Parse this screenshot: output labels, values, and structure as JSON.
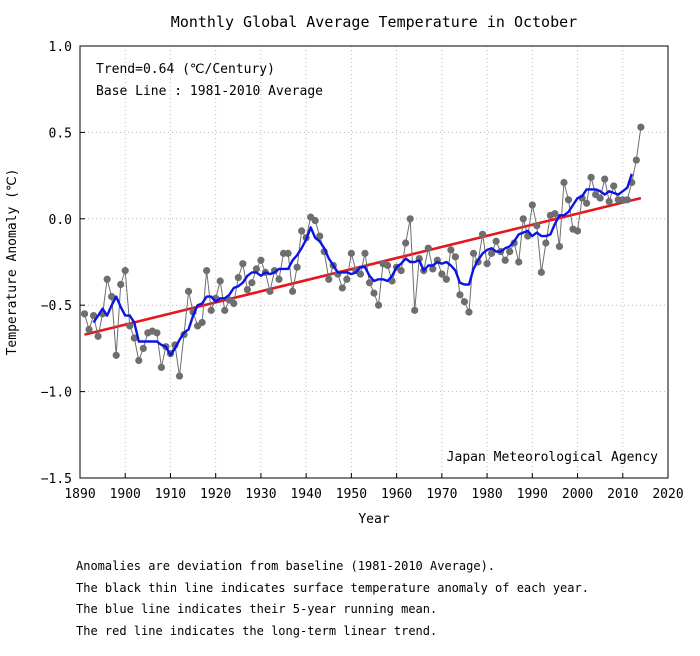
{
  "chart_data": {
    "type": "line",
    "title": "Monthly Global Average Temperature in October",
    "xlabel": "Year",
    "ylabel": "Temperature Anomaly (℃)",
    "xlim": [
      1890,
      2020
    ],
    "ylim": [
      -1.5,
      1.0
    ],
    "xticks": [
      1890,
      1900,
      1910,
      1920,
      1930,
      1940,
      1950,
      1960,
      1970,
      1980,
      1990,
      2000,
      2010,
      2020
    ],
    "xtick_labels": [
      "1890",
      "1900",
      "1910",
      "1920",
      "1930",
      "1940",
      "1950",
      "1960",
      "1970",
      "1980",
      "1990",
      "2000",
      "2010",
      "2020"
    ],
    "yticks": [
      1.0,
      0.5,
      0.0,
      -0.5,
      -1.0,
      -1.5
    ],
    "ytick_labels": [
      "1.0",
      "0.5",
      "0.0",
      "−0.5",
      "−1.0",
      "−1.5"
    ],
    "grid": true,
    "annotations": [
      "Trend=0.64 (℃/Century)",
      "Base Line : 1981-2010 Average",
      "Japan Meteorological Agency"
    ],
    "colors": {
      "annual": "#6e6e6e",
      "running_mean": "#0a14e6",
      "trend": "#e8141e",
      "grid": "#bbbbbb"
    },
    "series": [
      {
        "name": "annual anomaly",
        "x": [
          1891,
          1892,
          1893,
          1894,
          1895,
          1896,
          1897,
          1898,
          1899,
          1900,
          1901,
          1902,
          1903,
          1904,
          1905,
          1906,
          1907,
          1908,
          1909,
          1910,
          1911,
          1912,
          1913,
          1914,
          1915,
          1916,
          1917,
          1918,
          1919,
          1920,
          1921,
          1922,
          1923,
          1924,
          1925,
          1926,
          1927,
          1928,
          1929,
          1930,
          1931,
          1932,
          1933,
          1934,
          1935,
          1936,
          1937,
          1938,
          1939,
          1940,
          1941,
          1942,
          1943,
          1944,
          1945,
          1946,
          1947,
          1948,
          1949,
          1950,
          1951,
          1952,
          1953,
          1954,
          1955,
          1956,
          1957,
          1958,
          1959,
          1960,
          1961,
          1962,
          1963,
          1964,
          1965,
          1966,
          1967,
          1968,
          1969,
          1970,
          1971,
          1972,
          1973,
          1974,
          1975,
          1976,
          1977,
          1978,
          1979,
          1980,
          1981,
          1982,
          1983,
          1984,
          1985,
          1986,
          1987,
          1988,
          1989,
          1990,
          1991,
          1992,
          1993,
          1994,
          1995,
          1996,
          1997,
          1998,
          1999,
          2000,
          2001,
          2002,
          2003,
          2004,
          2005,
          2006,
          2007,
          2008,
          2009,
          2010,
          2011,
          2012,
          2013,
          2014
        ],
        "values": [
          -0.55,
          -0.64,
          -0.56,
          -0.68,
          -0.55,
          -0.35,
          -0.45,
          -0.79,
          -0.38,
          -0.3,
          -0.62,
          -0.69,
          -0.82,
          -0.75,
          -0.66,
          -0.65,
          -0.66,
          -0.86,
          -0.74,
          -0.78,
          -0.73,
          -0.91,
          -0.67,
          -0.42,
          -0.54,
          -0.62,
          -0.6,
          -0.3,
          -0.53,
          -0.46,
          -0.36,
          -0.53,
          -0.47,
          -0.49,
          -0.34,
          -0.26,
          -0.41,
          -0.37,
          -0.29,
          -0.24,
          -0.31,
          -0.42,
          -0.3,
          -0.35,
          -0.2,
          -0.2,
          -0.42,
          -0.28,
          -0.07,
          -0.11,
          0.01,
          -0.01,
          -0.1,
          -0.19,
          -0.35,
          -0.27,
          -0.32,
          -0.4,
          -0.35,
          -0.2,
          -0.3,
          -0.32,
          -0.2,
          -0.37,
          -0.43,
          -0.5,
          -0.26,
          -0.27,
          -0.36,
          -0.28,
          -0.3,
          -0.14,
          0.0,
          -0.53,
          -0.23,
          -0.3,
          -0.17,
          -0.29,
          -0.24,
          -0.32,
          -0.35,
          -0.18,
          -0.22,
          -0.44,
          -0.48,
          -0.54,
          -0.2,
          -0.25,
          -0.09,
          -0.26,
          -0.2,
          -0.13,
          -0.19,
          -0.24,
          -0.19,
          -0.14,
          -0.25,
          0.0,
          -0.1,
          0.08,
          -0.04,
          -0.31,
          -0.14,
          0.02,
          0.03,
          -0.16,
          0.21,
          0.11,
          -0.06,
          -0.07,
          0.12,
          0.09,
          0.24,
          0.14,
          0.12,
          0.23,
          0.1,
          0.19,
          0.11,
          0.11,
          0.11,
          0.21,
          0.34,
          0.53
        ]
      },
      {
        "name": "5-year running mean",
        "x": [
          1893,
          1894,
          1895,
          1896,
          1897,
          1898,
          1899,
          1900,
          1901,
          1902,
          1903,
          1904,
          1905,
          1906,
          1907,
          1908,
          1909,
          1910,
          1911,
          1912,
          1913,
          1914,
          1915,
          1916,
          1917,
          1918,
          1919,
          1920,
          1921,
          1922,
          1923,
          1924,
          1925,
          1926,
          1927,
          1928,
          1929,
          1930,
          1931,
          1932,
          1933,
          1934,
          1935,
          1936,
          1937,
          1938,
          1939,
          1940,
          1941,
          1942,
          1943,
          1944,
          1945,
          1946,
          1947,
          1948,
          1949,
          1950,
          1951,
          1952,
          1953,
          1954,
          1955,
          1956,
          1957,
          1958,
          1959,
          1960,
          1961,
          1962,
          1963,
          1964,
          1965,
          1966,
          1967,
          1968,
          1969,
          1970,
          1971,
          1972,
          1973,
          1974,
          1975,
          1976,
          1977,
          1978,
          1979,
          1980,
          1981,
          1982,
          1983,
          1984,
          1985,
          1986,
          1987,
          1988,
          1989,
          1990,
          1991,
          1992,
          1993,
          1994,
          1995,
          1996,
          1997,
          1998,
          1999,
          2000,
          2001,
          2002,
          2003,
          2004,
          2005,
          2006,
          2007,
          2008,
          2009,
          2010,
          2011,
          2012
        ],
        "values": [
          -0.6,
          -0.56,
          -0.52,
          -0.56,
          -0.5,
          -0.45,
          -0.51,
          -0.56,
          -0.56,
          -0.6,
          -0.71,
          -0.71,
          -0.71,
          -0.71,
          -0.71,
          -0.73,
          -0.74,
          -0.79,
          -0.75,
          -0.7,
          -0.66,
          -0.64,
          -0.56,
          -0.5,
          -0.49,
          -0.45,
          -0.45,
          -0.48,
          -0.46,
          -0.46,
          -0.44,
          -0.4,
          -0.39,
          -0.37,
          -0.33,
          -0.31,
          -0.31,
          -0.33,
          -0.31,
          -0.32,
          -0.31,
          -0.29,
          -0.29,
          -0.29,
          -0.24,
          -0.21,
          -0.17,
          -0.12,
          -0.05,
          -0.11,
          -0.13,
          -0.17,
          -0.23,
          -0.27,
          -0.31,
          -0.31,
          -0.31,
          -0.32,
          -0.31,
          -0.28,
          -0.28,
          -0.33,
          -0.36,
          -0.35,
          -0.35,
          -0.36,
          -0.33,
          -0.28,
          -0.26,
          -0.23,
          -0.25,
          -0.25,
          -0.24,
          -0.3,
          -0.27,
          -0.27,
          -0.25,
          -0.26,
          -0.25,
          -0.27,
          -0.3,
          -0.37,
          -0.38,
          -0.38,
          -0.29,
          -0.24,
          -0.2,
          -0.18,
          -0.17,
          -0.19,
          -0.19,
          -0.17,
          -0.16,
          -0.13,
          -0.09,
          -0.08,
          -0.07,
          -0.1,
          -0.08,
          -0.1,
          -0.1,
          -0.09,
          -0.03,
          0.02,
          0.02,
          0.04,
          0.08,
          0.12,
          0.13,
          0.17,
          0.17,
          0.17,
          0.16,
          0.14,
          0.16,
          0.15,
          0.14,
          0.16,
          0.18,
          0.26
        ]
      },
      {
        "name": "long-term linear trend",
        "x": [
          1891,
          2014
        ],
        "values": [
          -0.67,
          0.12
        ]
      }
    ],
    "notes": [
      "Anomalies are deviation from baseline (1981-2010 Average).",
      "The black thin line indicates surface temperature anomaly of each year.",
      "The blue line indicates their 5-year running mean.",
      "The red line indicates the long-term linear trend."
    ]
  }
}
